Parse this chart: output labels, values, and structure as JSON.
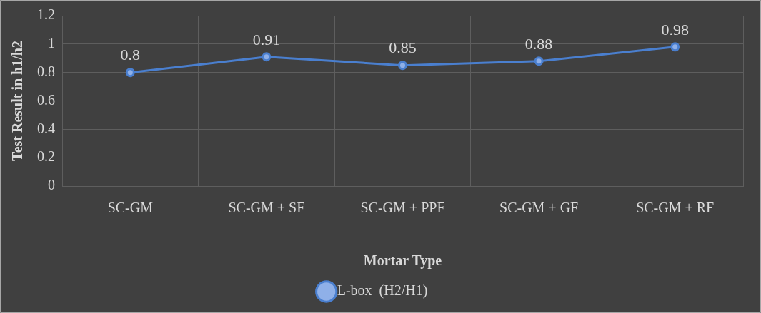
{
  "chart_data": {
    "type": "line",
    "xlabel": "Mortar Type",
    "ylabel": "Test Result in h1/h2",
    "categories": [
      "SC-GM",
      "SC-GM + SF",
      "SC-GM + PPF",
      "SC-GM + GF",
      "SC-GM + RF"
    ],
    "series": [
      {
        "name": "L-box  (H2/H1)",
        "color": "#4a7fcf",
        "values": [
          0.8,
          0.91,
          0.85,
          0.88,
          0.98
        ]
      }
    ],
    "ylim": [
      0,
      1.2
    ],
    "yticks": [
      0,
      0.2,
      0.4,
      0.6,
      0.8,
      1,
      1.2
    ],
    "grid": true,
    "legend": "bottom",
    "marker": "circle",
    "line_style": "solid",
    "data_labels": true
  }
}
